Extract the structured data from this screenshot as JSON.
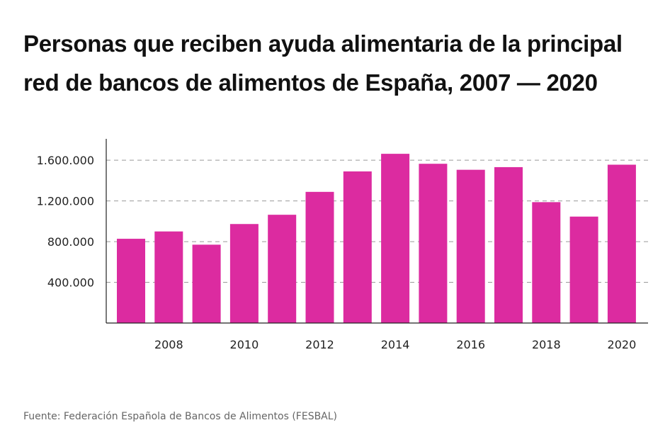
{
  "chart_data": {
    "type": "bar",
    "title": "Personas que reciben ayuda alimentaria de la principal red de bancos de alimentos de España, 2007 — 2020",
    "categories": [
      "2007",
      "2008",
      "2009",
      "2010",
      "2011",
      "2012",
      "2013",
      "2014",
      "2015",
      "2016",
      "2017",
      "2018",
      "2019",
      "2020"
    ],
    "values": [
      828000,
      900000,
      770000,
      973000,
      1064000,
      1289000,
      1490000,
      1663000,
      1565000,
      1506000,
      1532000,
      1188000,
      1046000,
      1556000
    ],
    "xticks": [
      "2008",
      "2010",
      "2012",
      "2014",
      "2016",
      "2018",
      "2020"
    ],
    "yticks": [
      400000,
      800000,
      1200000,
      1600000
    ],
    "ytick_labels": [
      "400.000",
      "800.000",
      "1.200.000",
      "1.600.000"
    ],
    "ylim": [
      0,
      1810000
    ],
    "grid": "horizontal dashed",
    "bar_color": "#dc2ba0",
    "source": "Fuente: Federación Española de Bancos de Alimentos (FESBAL)"
  }
}
